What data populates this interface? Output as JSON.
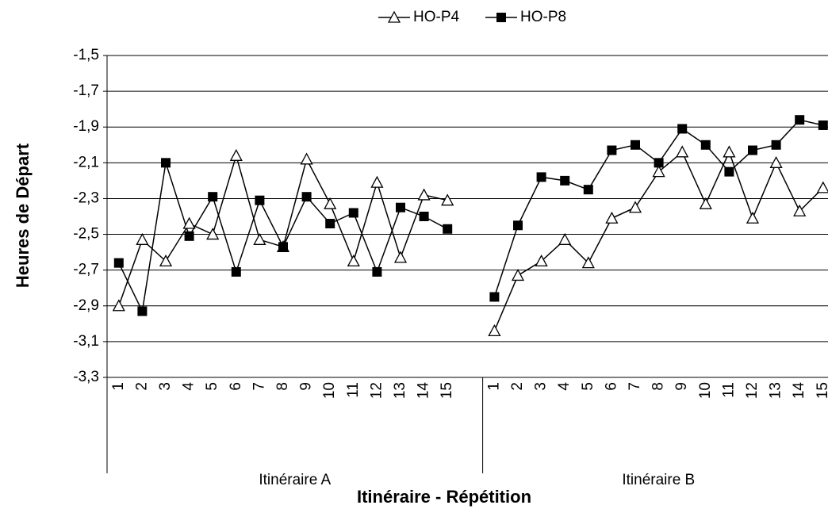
{
  "chart_data": {
    "type": "line",
    "y_label": "Heures de Départ",
    "x_label": "Itinéraire - Répétition",
    "categories": [
      "1",
      "2",
      "3",
      "4",
      "5",
      "6",
      "7",
      "8",
      "9",
      "10",
      "11",
      "12",
      "13",
      "14",
      "15",
      null,
      "1",
      "2",
      "3",
      "4",
      "5",
      "6",
      "7",
      "8",
      "9",
      "10",
      "11",
      "12",
      "13",
      "14",
      "15"
    ],
    "category_groups": [
      "Itinéraire A",
      "Itinéraire A",
      "Itinéraire A",
      "Itinéraire A",
      "Itinéraire A",
      "Itinéraire A",
      "Itinéraire A",
      "Itinéraire A",
      "Itinéraire A",
      "Itinéraire A",
      "Itinéraire A",
      "Itinéraire A",
      "Itinéraire A",
      "Itinéraire A",
      "Itinéraire A",
      "Itinéraire A",
      "Itinéraire B",
      "Itinéraire B",
      "Itinéraire B",
      "Itinéraire B",
      "Itinéraire B",
      "Itinéraire B",
      "Itinéraire B",
      "Itinéraire B",
      "Itinéraire B",
      "Itinéraire B",
      "Itinéraire B",
      "Itinéraire B",
      "Itinéraire B",
      "Itinéraire B",
      "Itinéraire B"
    ],
    "series": [
      {
        "name": "HO-P4",
        "color": "#000000",
        "marker": "triangle-open",
        "values": [
          -2.9,
          -2.53,
          -2.65,
          -2.44,
          -2.5,
          -2.06,
          -2.53,
          -2.57,
          -2.08,
          -2.33,
          -2.65,
          -2.21,
          -2.63,
          -2.28,
          -2.31,
          null,
          -3.04,
          -2.73,
          -2.65,
          -2.53,
          -2.66,
          -2.41,
          -2.35,
          -2.15,
          -2.04,
          -2.33,
          -2.04,
          -2.41,
          -2.1,
          -2.37,
          -2.24
        ]
      },
      {
        "name": "HO-P8",
        "color": "#000000",
        "marker": "square-filled",
        "values": [
          -2.66,
          -2.93,
          -2.1,
          -2.51,
          -2.29,
          -2.71,
          -2.31,
          -2.57,
          -2.29,
          -2.44,
          -2.38,
          -2.71,
          -2.35,
          -2.4,
          -2.47,
          null,
          -2.85,
          -2.45,
          -2.18,
          -2.2,
          -2.25,
          -2.03,
          -2.0,
          -2.1,
          -1.91,
          -2.0,
          -2.15,
          -2.03,
          -2.0,
          -1.86,
          -1.89
        ]
      }
    ],
    "ylim": [
      -3.3,
      -1.5
    ],
    "yticks": [
      {
        "value": -3.3,
        "label": "-3,3"
      },
      {
        "value": -3.1,
        "label": "-3,1"
      },
      {
        "value": -2.9,
        "label": "-2,9"
      },
      {
        "value": -2.7,
        "label": "-2,7"
      },
      {
        "value": -2.5,
        "label": "-2,5"
      },
      {
        "value": -2.3,
        "label": "-2,3"
      },
      {
        "value": -2.1,
        "label": "-2,1"
      },
      {
        "value": -1.9,
        "label": "-1,9"
      },
      {
        "value": -1.7,
        "label": "-1,7"
      },
      {
        "value": -1.5,
        "label": "-1,5"
      }
    ],
    "grid": true,
    "legend": "top"
  }
}
